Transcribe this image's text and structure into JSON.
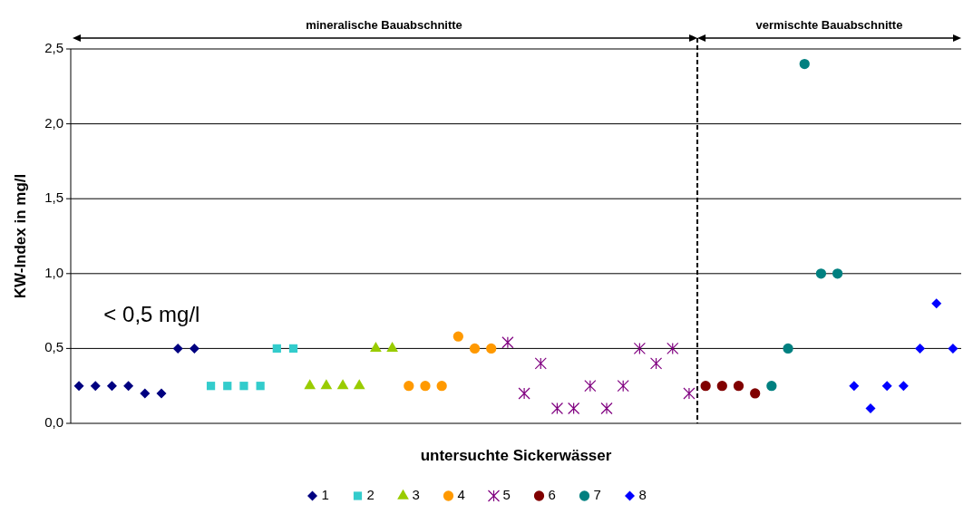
{
  "chart_data": {
    "type": "scatter",
    "xlabel": "untersuchte Sickerwässer",
    "ylabel": "KW-Index in mg/l",
    "categories": [
      null,
      null,
      null,
      null,
      null,
      null,
      null,
      null,
      null,
      null,
      null,
      null,
      null,
      null,
      null,
      null,
      null,
      null,
      null,
      null,
      null,
      null,
      null,
      null,
      null,
      null,
      null,
      null,
      null,
      null,
      null,
      null,
      null,
      null,
      null,
      null,
      null,
      null,
      null,
      null,
      null,
      null,
      null,
      null,
      null,
      null,
      null,
      null,
      null,
      null,
      null,
      null,
      null,
      null
    ],
    "series": [
      {
        "name": "1",
        "color": "#000080",
        "marker": "diamond",
        "values": [
          0.25,
          0.25,
          0.25,
          0.25,
          0.2,
          0.2,
          0.5,
          0.5,
          null,
          null,
          null,
          null,
          null,
          null,
          null,
          null,
          null,
          null,
          null,
          null,
          null,
          null,
          null,
          null,
          null,
          null,
          null,
          null,
          null,
          null,
          null,
          null,
          null,
          null,
          null,
          null,
          null,
          null,
          null,
          null,
          null,
          null,
          null,
          null,
          null,
          null,
          null,
          null,
          null,
          null,
          null,
          null,
          null,
          null
        ]
      },
      {
        "name": "2",
        "color": "#33cccc",
        "marker": "square",
        "values": [
          null,
          null,
          null,
          null,
          null,
          null,
          null,
          null,
          0.25,
          0.25,
          0.25,
          0.25,
          0.5,
          0.5,
          null,
          null,
          null,
          null,
          null,
          null,
          null,
          null,
          null,
          null,
          null,
          null,
          null,
          null,
          null,
          null,
          null,
          null,
          null,
          null,
          null,
          null,
          null,
          null,
          null,
          null,
          null,
          null,
          null,
          null,
          null,
          null,
          null,
          null,
          null,
          null,
          null,
          null,
          null,
          null
        ]
      },
      {
        "name": "3",
        "color": "#99cc00",
        "marker": "triangle",
        "values": [
          null,
          null,
          null,
          null,
          null,
          null,
          null,
          null,
          null,
          null,
          null,
          null,
          null,
          null,
          0.25,
          0.25,
          0.25,
          0.25,
          0.5,
          0.5,
          null,
          null,
          null,
          null,
          null,
          null,
          null,
          null,
          null,
          null,
          null,
          null,
          null,
          null,
          null,
          null,
          null,
          null,
          null,
          null,
          null,
          null,
          null,
          null,
          null,
          null,
          null,
          null,
          null,
          null,
          null,
          null,
          null,
          null
        ]
      },
      {
        "name": "4",
        "color": "#ff9900",
        "marker": "circle",
        "values": [
          null,
          null,
          null,
          null,
          null,
          null,
          null,
          null,
          null,
          null,
          null,
          null,
          null,
          null,
          null,
          null,
          null,
          null,
          null,
          null,
          0.25,
          0.25,
          0.25,
          0.58,
          0.5,
          0.5,
          null,
          null,
          null,
          null,
          null,
          null,
          null,
          null,
          null,
          null,
          null,
          null,
          null,
          null,
          null,
          null,
          null,
          null,
          null,
          null,
          null,
          null,
          null,
          null,
          null,
          null,
          null,
          null
        ]
      },
      {
        "name": "5",
        "color": "#800080",
        "marker": "cross",
        "values": [
          null,
          null,
          null,
          null,
          null,
          null,
          null,
          null,
          null,
          null,
          null,
          null,
          null,
          null,
          null,
          null,
          null,
          null,
          null,
          null,
          null,
          null,
          null,
          null,
          null,
          null,
          0.54,
          0.2,
          0.4,
          0.1,
          0.1,
          0.25,
          0.1,
          0.25,
          0.5,
          0.4,
          0.5,
          0.2,
          null,
          null,
          null,
          null,
          null,
          null,
          null,
          null,
          null,
          null,
          null,
          null,
          null,
          null,
          null,
          null
        ]
      },
      {
        "name": "6",
        "color": "#800000",
        "marker": "circle",
        "values": [
          null,
          null,
          null,
          null,
          null,
          null,
          null,
          null,
          null,
          null,
          null,
          null,
          null,
          null,
          null,
          null,
          null,
          null,
          null,
          null,
          null,
          null,
          null,
          null,
          null,
          null,
          null,
          null,
          null,
          null,
          null,
          null,
          null,
          null,
          null,
          null,
          null,
          null,
          0.25,
          0.25,
          0.25,
          0.2,
          null,
          null,
          null,
          null,
          null,
          null,
          null,
          null,
          null,
          null,
          null,
          null
        ]
      },
      {
        "name": "7",
        "color": "#008080",
        "marker": "circle",
        "values": [
          null,
          null,
          null,
          null,
          null,
          null,
          null,
          null,
          null,
          null,
          null,
          null,
          null,
          null,
          null,
          null,
          null,
          null,
          null,
          null,
          null,
          null,
          null,
          null,
          null,
          null,
          null,
          null,
          null,
          null,
          null,
          null,
          null,
          null,
          null,
          null,
          null,
          null,
          null,
          null,
          null,
          null,
          0.25,
          0.5,
          2.4,
          1.0,
          1.0,
          null,
          null,
          null,
          null,
          null,
          null,
          null
        ]
      },
      {
        "name": "8",
        "color": "#0000ff",
        "marker": "diamond",
        "values": [
          null,
          null,
          null,
          null,
          null,
          null,
          null,
          null,
          null,
          null,
          null,
          null,
          null,
          null,
          null,
          null,
          null,
          null,
          null,
          null,
          null,
          null,
          null,
          null,
          null,
          null,
          null,
          null,
          null,
          null,
          null,
          null,
          null,
          null,
          null,
          null,
          null,
          null,
          null,
          null,
          null,
          null,
          null,
          null,
          null,
          null,
          null,
          0.25,
          0.1,
          0.25,
          0.25,
          0.5,
          0.8,
          0.5
        ]
      }
    ],
    "ylim": [
      0,
      2.5
    ],
    "yticks": [
      {
        "value": 0,
        "label": "0,0"
      },
      {
        "value": 0.5,
        "label": "0,5"
      },
      {
        "value": 1,
        "label": "1,0"
      },
      {
        "value": 1.5,
        "label": "1,5"
      },
      {
        "value": 2,
        "label": "2,0"
      },
      {
        "value": 2.5,
        "label": "2,5"
      }
    ],
    "grid": "y",
    "legend": "bottom",
    "annotations": [
      "mineralische Bauabschnitte",
      "vermischte Bauabschnitte",
      "< 0,5 mg/l"
    ]
  }
}
